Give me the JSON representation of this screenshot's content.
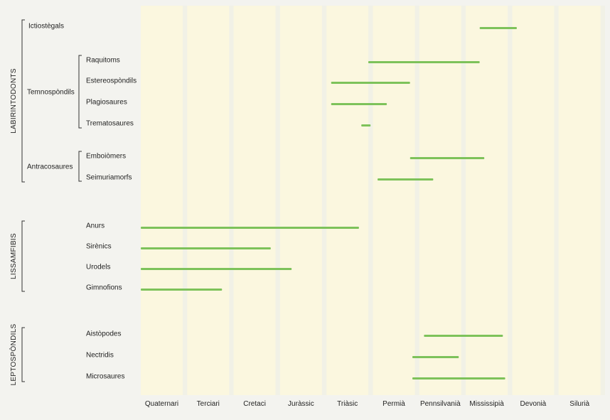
{
  "chart_data": {
    "type": "range-bar",
    "x_categories": [
      "Quaternari",
      "Terciari",
      "Cretaci",
      "Juràssic",
      "Triàsic",
      "Permià",
      "Pennsilvanià",
      "Mississipià",
      "Devonià",
      "Silurià"
    ],
    "groups": [
      {
        "name": "LABIRINTODONTS",
        "subgroups": [
          {
            "name": "",
            "taxa": [
              {
                "name": "Ictiostègals",
                "start": 7.3,
                "end": 8.1
              }
            ]
          },
          {
            "name": "Temnospòndils",
            "taxa": [
              {
                "name": "Raquitoms",
                "start": 4.9,
                "end": 7.3
              },
              {
                "name": "Estereospòndils",
                "start": 4.1,
                "end": 5.8
              },
              {
                "name": "Plagiosaures",
                "start": 4.1,
                "end": 5.3
              },
              {
                "name": "Trematosaures",
                "start": 4.75,
                "end": 4.95
              }
            ]
          },
          {
            "name": "Antracosaures",
            "taxa": [
              {
                "name": "Emboiòmers",
                "start": 5.8,
                "end": 7.4
              },
              {
                "name": "Seimuriamorfs",
                "start": 5.1,
                "end": 6.3
              }
            ]
          }
        ]
      },
      {
        "name": "LISSAMFIBIS",
        "subgroups": [
          {
            "name": "",
            "taxa": [
              {
                "name": "Anurs",
                "start": 0,
                "end": 4.7
              },
              {
                "name": "Sirènics",
                "start": 0,
                "end": 2.8
              },
              {
                "name": "Urodels",
                "start": 0,
                "end": 3.25
              },
              {
                "name": "Gimnofions",
                "start": 0,
                "end": 1.75
              }
            ]
          }
        ]
      },
      {
        "name": "LEPTOSPÒNDILS",
        "subgroups": [
          {
            "name": "",
            "taxa": [
              {
                "name": "Aistòpodes",
                "start": 6.1,
                "end": 7.8
              },
              {
                "name": "Nectridis",
                "start": 5.85,
                "end": 6.85
              },
              {
                "name": "Microsaures",
                "start": 5.85,
                "end": 7.85
              }
            ]
          }
        ]
      }
    ],
    "colors": {
      "bar": "#7dc25a",
      "column": "#fbf7df",
      "column_gap": "#f1f1e6",
      "background": "#f3f3ef"
    }
  }
}
